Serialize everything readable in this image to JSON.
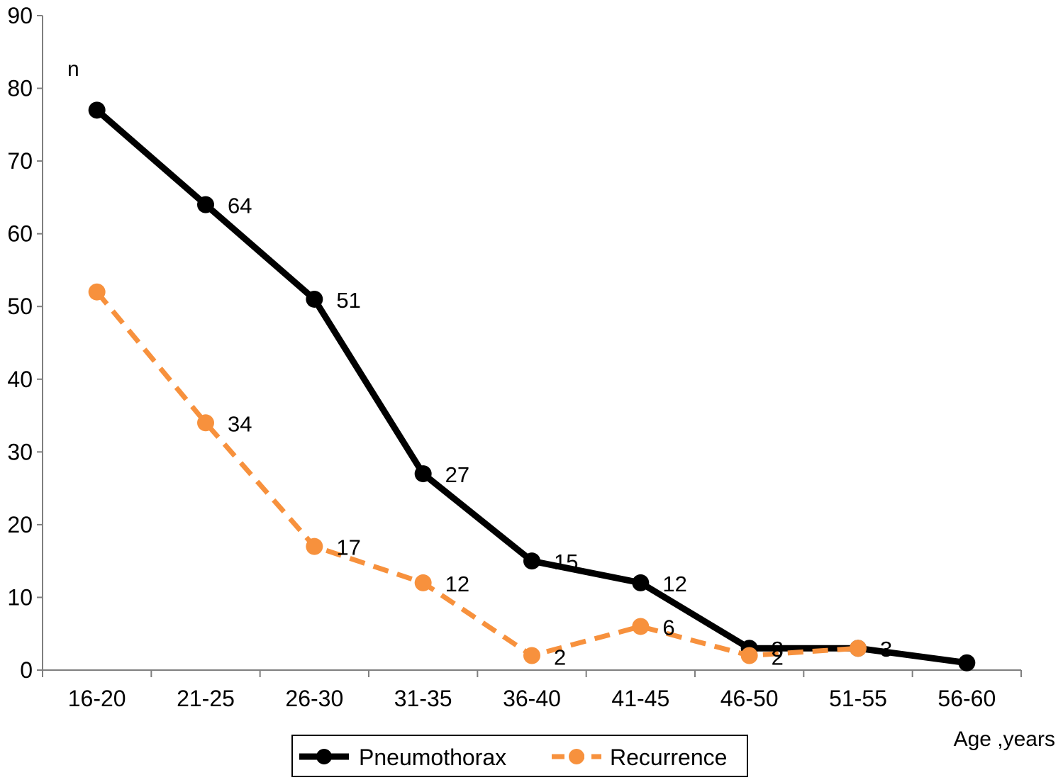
{
  "chart_data": {
    "type": "line",
    "categories": [
      "16-20",
      "21-25",
      "26-30",
      "31-35",
      "36-40",
      "41-45",
      "46-50",
      "51-55",
      "56-60"
    ],
    "series": [
      {
        "name": "Pneumothorax",
        "color": "#000000",
        "dashed": false,
        "values": [
          77,
          64,
          51,
          27,
          15,
          12,
          3,
          3,
          1
        ],
        "data_labels": [
          "",
          "64",
          "51",
          "27",
          "15",
          "12",
          "3",
          "3",
          ""
        ]
      },
      {
        "name": "Recurrence",
        "color": "#F7913D",
        "dashed": true,
        "values": [
          52,
          34,
          17,
          12,
          2,
          6,
          2,
          3,
          null
        ],
        "data_labels": [
          "",
          "34",
          "17",
          "12",
          "2",
          "6",
          "2",
          "",
          ""
        ]
      }
    ],
    "ylabel": "n",
    "xlabel": "Age ,years",
    "ylim": [
      0,
      90
    ],
    "yticks": [
      "0",
      "10",
      "20",
      "30",
      "40",
      "50",
      "60",
      "70",
      "80",
      "90"
    ],
    "grid": false,
    "legend": "bottom-center"
  }
}
